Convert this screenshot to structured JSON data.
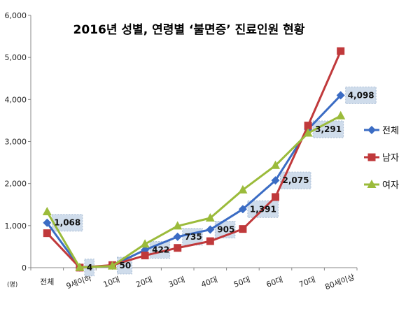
{
  "chart_data": {
    "type": "line",
    "title": "2016년 성별, 연령별 ‘불면증’ 진료인원 현황",
    "unit_label": "(명)",
    "categories": [
      "전체",
      "9세이하",
      "10대",
      "20대",
      "30대",
      "40대",
      "50대",
      "60대",
      "70대",
      "80세이상"
    ],
    "ylim": [
      0,
      6000
    ],
    "yticks": [
      "0",
      "1,000",
      "2,000",
      "3,000",
      "4,000",
      "5,000",
      "6,000"
    ],
    "ytick_values": [
      0,
      1000,
      2000,
      3000,
      4000,
      5000,
      6000
    ],
    "grid": false,
    "legend_position": "right",
    "series": [
      {
        "name": "전체",
        "color": "#3B6CC4",
        "marker": "diamond",
        "values": [
          1068,
          4,
          50,
          422,
          735,
          905,
          1391,
          2075,
          3291,
          4098
        ]
      },
      {
        "name": "남자",
        "color": "#C0393B",
        "marker": "square",
        "values": [
          820,
          2,
          60,
          290,
          470,
          630,
          920,
          1680,
          3380,
          5150
        ]
      },
      {
        "name": "여자",
        "color": "#9BBB3B",
        "marker": "triangle",
        "values": [
          1330,
          5,
          40,
          560,
          990,
          1180,
          1850,
          2430,
          3200,
          3610
        ]
      }
    ],
    "data_labels": [
      "1,068",
      "4",
      "50",
      "422",
      "735",
      "905",
      "1,391",
      "2,075",
      "3,291",
      "4,098"
    ]
  }
}
